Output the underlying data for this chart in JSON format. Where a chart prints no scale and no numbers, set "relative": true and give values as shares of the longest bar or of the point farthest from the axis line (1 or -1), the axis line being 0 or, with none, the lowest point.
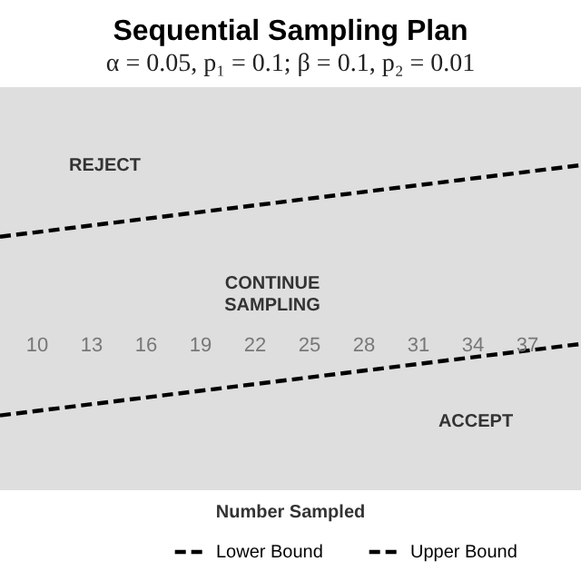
{
  "chart_data": {
    "type": "line",
    "title": "Sequential Sampling Plan",
    "subtitle": "α = 0.05, p₁ = 0.1; β = 0.1, p₂ = 0.01",
    "xlabel": "Number Sampled",
    "annotations": [
      "REJECT",
      "CONTINUE SAMPLING",
      "ACCEPT"
    ],
    "x": [
      8,
      40
    ],
    "xlim": [
      8,
      40
    ],
    "xticks": [
      10,
      13,
      16,
      19,
      22,
      25,
      28,
      31,
      34,
      37
    ],
    "relative": true,
    "tick_labels": "x",
    "legend": "bottom",
    "line_style": "dashed",
    "series": [
      {
        "name": "Lower Bound",
        "color": "#000000",
        "values": [
          0.23,
          0.45
        ]
      },
      {
        "name": "Upper Bound",
        "color": "#000000",
        "values": [
          0.78,
          1
        ]
      }
    ]
  }
}
